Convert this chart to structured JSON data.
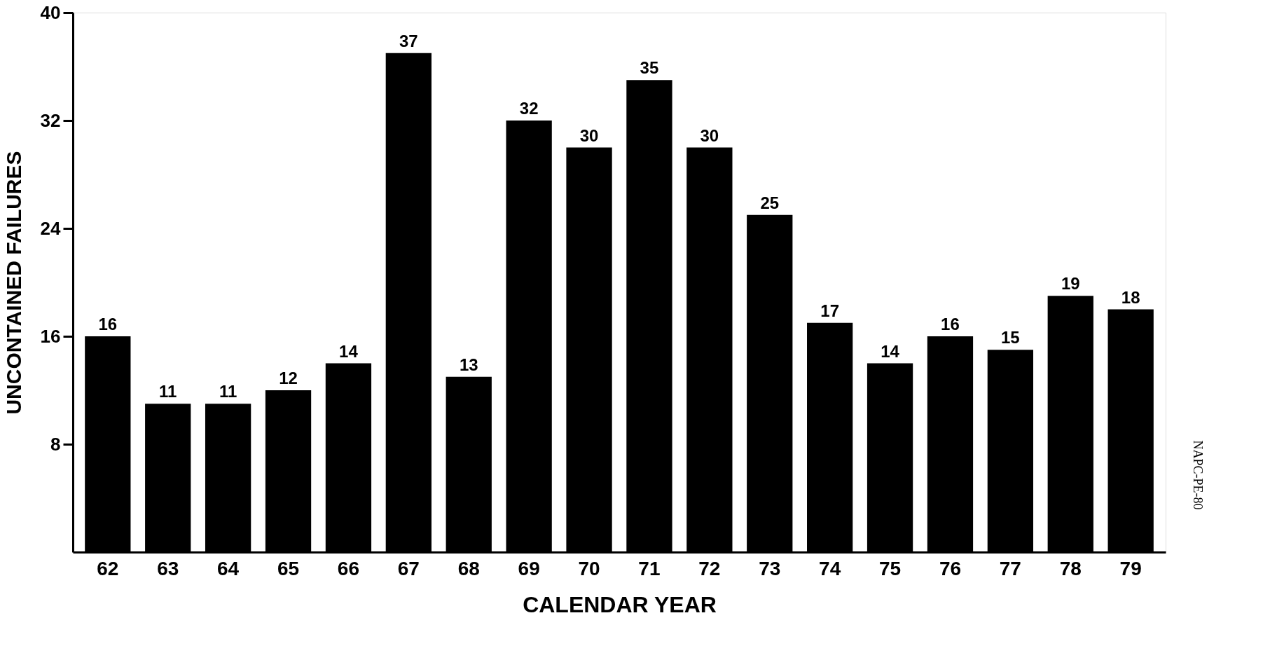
{
  "chart_data": {
    "type": "bar",
    "xlabel": "CALENDAR YEAR",
    "ylabel": "UNCONTAINED FAILURES",
    "categories": [
      "62",
      "63",
      "64",
      "65",
      "66",
      "67",
      "68",
      "69",
      "70",
      "71",
      "72",
      "73",
      "74",
      "75",
      "76",
      "77",
      "78",
      "79"
    ],
    "values": [
      16,
      11,
      11,
      12,
      14,
      37,
      13,
      32,
      30,
      35,
      30,
      25,
      17,
      14,
      16,
      15,
      19,
      18
    ],
    "color": "#000000",
    "ylim": [
      0,
      40
    ],
    "yticks": [
      8,
      16,
      24,
      32,
      40
    ],
    "data_labels": true,
    "grid": false,
    "annotations": [
      "NAPC-PE-80"
    ]
  }
}
